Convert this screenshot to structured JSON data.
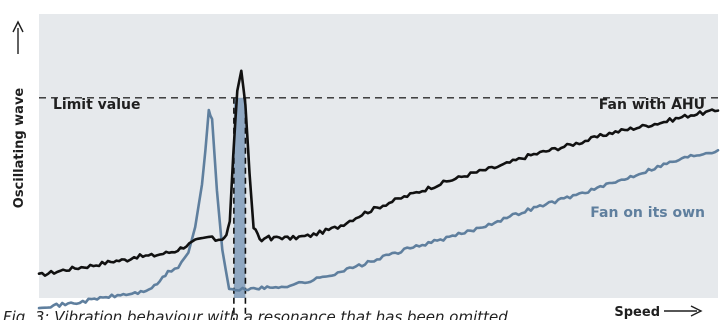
{
  "chart_data": {
    "type": "line",
    "ylabel": "Oscillating wave",
    "xlabel": "Speed",
    "caption": "Fig. 3: Vibration behaviour with a resonance that has been omitted",
    "xlim": [
      0,
      100
    ],
    "ylim": [
      0,
      100
    ],
    "grid": false,
    "limit": {
      "label": "Limit value",
      "value": 70.5
    },
    "resonance_band": {
      "x_start": 28.7,
      "x_end": 30.4,
      "color": "#7f9bba"
    },
    "series": [
      {
        "name": "Fan with AHU",
        "color": "#111111",
        "x": [
          0,
          4,
          8,
          11,
          13,
          14,
          17,
          20,
          23,
          25,
          26,
          27,
          27.6,
          28.1,
          28.6,
          29.2,
          29.8,
          30.4,
          31,
          31.6,
          32.2,
          32.8,
          33.5,
          34.2,
          35,
          37,
          40,
          44,
          48,
          52,
          56,
          60,
          64,
          68,
          72,
          76,
          80,
          84,
          88,
          92,
          96,
          100
        ],
        "y": [
          8,
          10,
          11.5,
          13,
          13.5,
          14.5,
          15,
          16.5,
          20,
          21.5,
          20.5,
          21,
          22,
          27,
          50,
          73,
          80,
          68,
          44,
          25,
          22,
          20,
          22,
          20.5,
          21.5,
          21,
          22,
          25,
          30,
          34,
          37.5,
          41,
          44,
          46.5,
          50,
          52.5,
          55,
          58,
          60,
          62,
          64.5,
          66
        ]
      },
      {
        "name": "Fan on its own",
        "color": "#5f7f9e",
        "x": [
          0,
          3,
          6,
          9,
          12,
          15,
          17,
          19,
          20.5,
          22,
          23,
          24,
          24.5,
          25,
          25.5,
          26.2,
          27,
          28,
          29,
          30,
          32,
          34,
          37,
          40,
          44,
          48,
          52,
          56,
          60,
          64,
          68,
          72,
          76,
          80,
          84,
          88,
          92,
          96,
          100
        ],
        "y": [
          -3,
          -2.5,
          -1.5,
          0,
          1,
          2,
          4,
          9,
          11,
          16,
          25,
          40,
          52,
          66,
          63,
          38,
          17,
          3,
          2.5,
          3,
          3.5,
          3.5,
          4.5,
          6,
          9,
          12,
          15.5,
          18.5,
          21,
          24,
          27.5,
          31,
          34,
          37,
          40,
          43.5,
          47,
          50,
          52
        ]
      }
    ]
  }
}
